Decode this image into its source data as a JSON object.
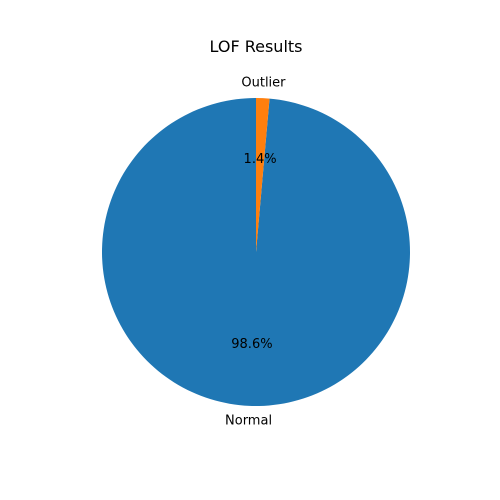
{
  "chart_data": {
    "type": "pie",
    "title": "LOF Results",
    "categories": [
      "Normal",
      "Outlier"
    ],
    "values": [
      98.6,
      1.4
    ],
    "percent_labels": [
      "98.6%",
      "1.4%"
    ],
    "colors": [
      "#1f77b4",
      "#ff7f0e"
    ],
    "start_angle_deg": 90,
    "direction": "counterclockwise",
    "legend": false
  }
}
